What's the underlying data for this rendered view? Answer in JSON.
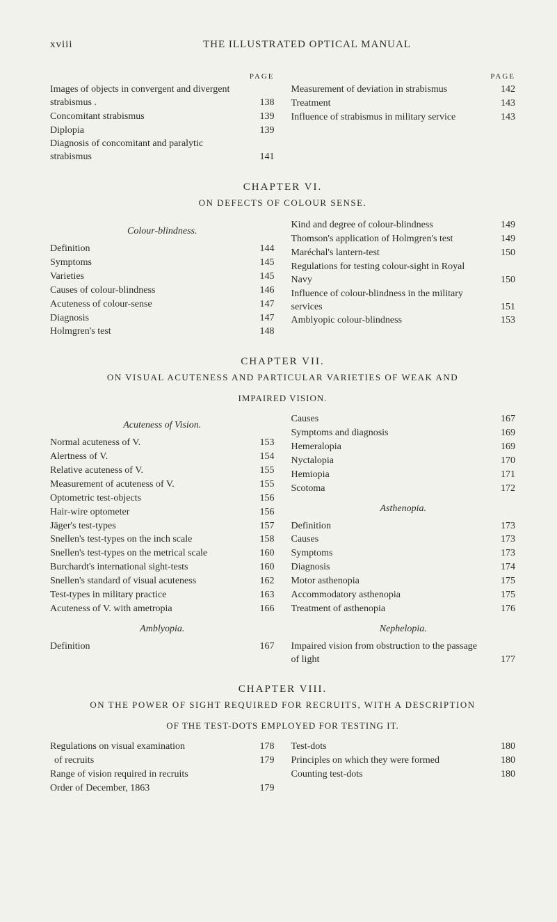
{
  "runningHeader": {
    "pageRoman": "xviii",
    "title": "THE ILLUSTRATED OPTICAL MANUAL"
  },
  "pageLabel": "PAGE",
  "topSection": {
    "left": [
      {
        "text": "Images of objects in convergent and divergent strabismus .",
        "page": "138"
      },
      {
        "text": "Concomitant strabismus",
        "page": "139"
      },
      {
        "text": "Diplopia",
        "page": "139"
      },
      {
        "text": "Diagnosis of concomitant and paralytic strabismus",
        "page": "141"
      }
    ],
    "right": [
      {
        "text": "Measurement of deviation in strabismus",
        "page": "142"
      },
      {
        "text": "Treatment",
        "page": "143"
      },
      {
        "text": "Influence of strabismus in military service",
        "page": "143"
      }
    ]
  },
  "chapter6": {
    "title": "CHAPTER VI.",
    "sub": "ON DEFECTS OF COLOUR SENSE.",
    "leftHead": "Colour-blindness.",
    "left": [
      {
        "text": "Definition",
        "page": "144"
      },
      {
        "text": "Symptoms",
        "page": "145"
      },
      {
        "text": "Varieties",
        "page": "145"
      },
      {
        "text": "Causes of colour-blindness",
        "page": "146"
      },
      {
        "text": "Acuteness of colour-sense",
        "page": "147"
      },
      {
        "text": "Diagnosis",
        "page": "147"
      },
      {
        "text": "Holmgren's test",
        "page": "148"
      }
    ],
    "right": [
      {
        "text": "Kind and degree of colour-blindness",
        "page": "149"
      },
      {
        "text": "Thomson's application of Holmgren's test",
        "page": "149"
      },
      {
        "text": "Maréchal's lantern-test",
        "page": "150"
      },
      {
        "text": "Regulations for testing colour-sight in Royal Navy",
        "page": "150"
      },
      {
        "text": "Influence of colour-blindness in the military services",
        "page": "151"
      },
      {
        "text": "Amblyopic colour-blindness",
        "page": "153"
      }
    ]
  },
  "chapter7": {
    "title": "CHAPTER VII.",
    "sub": "ON VISUAL ACUTENESS AND PARTICULAR VARIETIES OF WEAK AND",
    "sub2": "IMPAIRED VISION.",
    "leftHead1": "Acuteness of Vision.",
    "left1": [
      {
        "text": "Normal acuteness of V.",
        "page": "153"
      },
      {
        "text": "Alertness of V.",
        "page": "154"
      },
      {
        "text": "Relative acuteness of V.",
        "page": "155"
      },
      {
        "text": "Measurement of acuteness of V.",
        "page": "155"
      },
      {
        "text": "Optometric test-objects",
        "page": "156"
      },
      {
        "text": "Hair-wire optometer",
        "page": "156"
      },
      {
        "text": "Jäger's test-types",
        "page": "157"
      },
      {
        "text": "Snellen's test-types on the inch scale",
        "page": "158"
      },
      {
        "text": "Snellen's test-types on the metrical scale",
        "page": "160"
      },
      {
        "text": "Burchardt's international sight-tests",
        "page": "160"
      },
      {
        "text": "Snellen's standard of visual acuteness",
        "page": "162"
      },
      {
        "text": "Test-types in military practice",
        "page": "163"
      },
      {
        "text": "Acuteness of V. with ametropia",
        "page": "166"
      }
    ],
    "leftHead2": "Amblyopia.",
    "left2": [
      {
        "text": "Definition",
        "page": "167"
      }
    ],
    "right1": [
      {
        "text": "Causes",
        "page": "167"
      },
      {
        "text": "Symptoms and diagnosis",
        "page": "169"
      },
      {
        "text": "Hemeralopia",
        "page": "169"
      },
      {
        "text": "Nyctalopia",
        "page": "170"
      },
      {
        "text": "Hemiopia",
        "page": "171"
      },
      {
        "text": "Scotoma",
        "page": "172"
      }
    ],
    "rightHead2": "Asthenopia.",
    "right2": [
      {
        "text": "Definition",
        "page": "173"
      },
      {
        "text": "Causes",
        "page": "173"
      },
      {
        "text": "Symptoms",
        "page": "173"
      },
      {
        "text": "Diagnosis",
        "page": "174"
      },
      {
        "text": "Motor asthenopia",
        "page": "175"
      },
      {
        "text": "Accommodatory asthenopia",
        "page": "175"
      },
      {
        "text": "Treatment of asthenopia",
        "page": "176"
      }
    ],
    "rightHead3": "Nephelopia.",
    "right3": [
      {
        "text": "Impaired vision from obstruction to the passage of light",
        "page": "177"
      }
    ]
  },
  "chapter8": {
    "title": "CHAPTER VIII.",
    "sub": "ON THE POWER OF SIGHT REQUIRED FOR RECRUITS, WITH A DESCRIPTION",
    "sub2": "OF THE TEST-DOTS EMPLOYED FOR TESTING IT.",
    "left": [
      {
        "text": "Regulations on visual examination of recruits",
        "page": "178"
      },
      {
        "text": "",
        "page": "179",
        "suppress": true
      },
      {
        "text": "Range of vision required in recruits",
        "page": ""
      },
      {
        "text": "Order of December, 1863",
        "page": "179"
      }
    ],
    "leftReal": [
      {
        "text": "Regulations on visual examination of recruits",
        "page": "178"
      },
      {
        "text": "     of recruits",
        "page": "179",
        "continuation": true
      },
      {
        "text": "Range of vision required in recruits",
        "page": ""
      },
      {
        "text": "Order of December, 1863",
        "page": "179"
      }
    ],
    "right": [
      {
        "text": "Test-dots",
        "page": "180"
      },
      {
        "text": "Principles on which they were formed",
        "page": "180"
      },
      {
        "text": "Counting test-dots",
        "page": "180"
      }
    ]
  },
  "ch8left": [
    {
      "text": "Regulations on visual examination",
      "page": "178"
    },
    {
      "text": "of recruits",
      "page": "179",
      "indent": true
    },
    {
      "text": "Range of vision required in recruits",
      "page": ""
    },
    {
      "text": "Order of December, 1863",
      "page": "179"
    }
  ]
}
